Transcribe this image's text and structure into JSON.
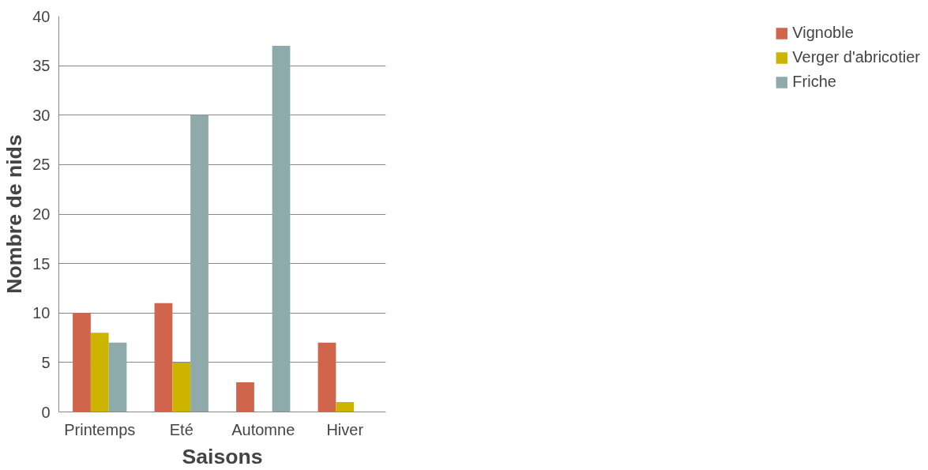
{
  "chart_data": {
    "type": "bar",
    "xlabel": "Saisons",
    "ylabel": "Nombre de nids",
    "categories": [
      "Printemps",
      "Eté",
      "Automne",
      "Hiver"
    ],
    "series": [
      {
        "name": "Vignoble",
        "color": "#d0654b",
        "values": [
          10,
          11,
          3,
          7
        ]
      },
      {
        "name": "Verger d'abricotier",
        "color": "#ccb400",
        "values": [
          8,
          5,
          0,
          1
        ]
      },
      {
        "name": "Friche",
        "color": "#8eaaaa",
        "values": [
          7,
          30,
          37,
          0
        ]
      }
    ],
    "ylim": [
      0,
      40
    ],
    "yticks": [
      0,
      5,
      10,
      15,
      20,
      25,
      30,
      35,
      40
    ],
    "grid": "y",
    "legend": "right"
  }
}
